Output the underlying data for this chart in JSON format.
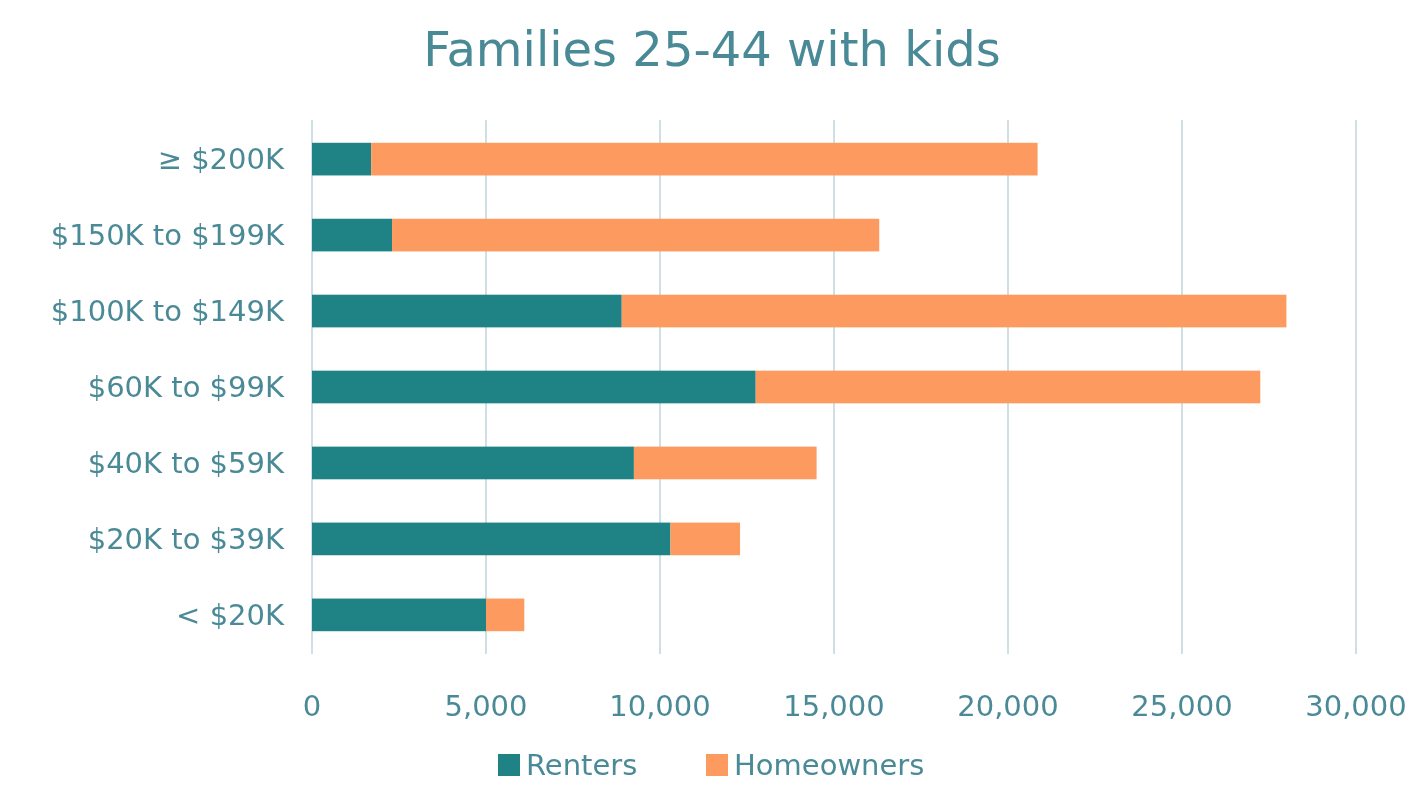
{
  "chart_data": {
    "type": "bar",
    "title": "Families 25-44 with kids",
    "orientation": "horizontal",
    "stacked": true,
    "categories": [
      "≥ $200K",
      "$150K to $199K",
      "$100K to $149K",
      "$60K to $99K",
      "$40K to $59K",
      "$20K to $39K",
      "< $20K"
    ],
    "series": [
      {
        "name": "Renters",
        "color": "#1f8284",
        "values": [
          1700,
          2300,
          8900,
          12750,
          9250,
          10300,
          5000
        ]
      },
      {
        "name": "Homeowners",
        "color": "#fd9a60",
        "values": [
          19150,
          14000,
          19100,
          14500,
          5250,
          2000,
          1100
        ]
      }
    ],
    "xlim": [
      0,
      30000
    ],
    "xticks": [
      {
        "value": 0,
        "label": "0"
      },
      {
        "value": 5000,
        "label": "5,000"
      },
      {
        "value": 10000,
        "label": "10,000"
      },
      {
        "value": 15000,
        "label": "15,000"
      },
      {
        "value": 20000,
        "label": "20,000"
      },
      {
        "value": 25000,
        "label": "25,000"
      },
      {
        "value": 30000,
        "label": "30,000"
      }
    ],
    "grid": "x",
    "legend": "bottom"
  }
}
